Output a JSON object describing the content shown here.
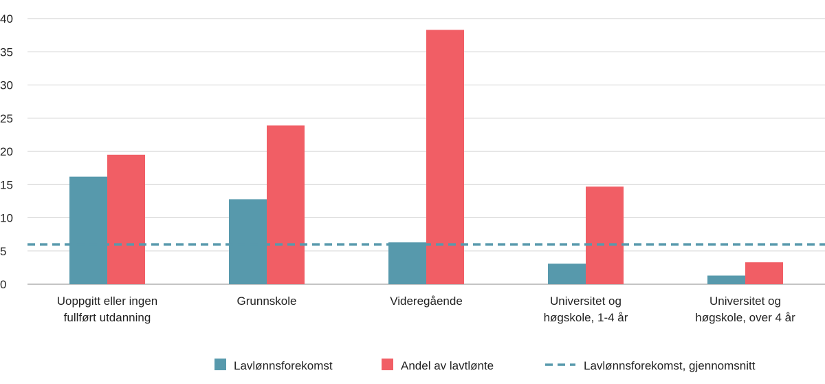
{
  "chart_data": {
    "type": "bar",
    "categories": [
      [
        "Uoppgitt eller ingen",
        "fullført utdanning"
      ],
      [
        "Grunnskole"
      ],
      [
        "Videregående"
      ],
      [
        "Universitet og",
        "høgskole, 1-4 år"
      ],
      [
        "Universitet og",
        "høgskole, over 4 år"
      ]
    ],
    "series": [
      {
        "name": "Lavlønnsforekomst",
        "color": "#5799ac",
        "values": [
          16.2,
          12.8,
          6.3,
          3.1,
          1.3
        ]
      },
      {
        "name": "Andel av lavtlønte",
        "color": "#f15e65",
        "values": [
          19.5,
          23.9,
          38.3,
          14.7,
          3.3
        ]
      }
    ],
    "reference_line": {
      "name": "Lavlønnsforekomst, gjennomsnitt",
      "value": 6.0,
      "color": "#5799ac",
      "style": "dashed"
    },
    "ylim": [
      0,
      40
    ],
    "yticks": [
      0,
      5,
      10,
      15,
      20,
      25,
      30,
      35,
      40
    ],
    "ytick_labels": [
      "0",
      "5",
      "10",
      "15",
      "20",
      "25",
      "30",
      "35",
      "40"
    ],
    "grid": true,
    "legend": "bottom"
  }
}
